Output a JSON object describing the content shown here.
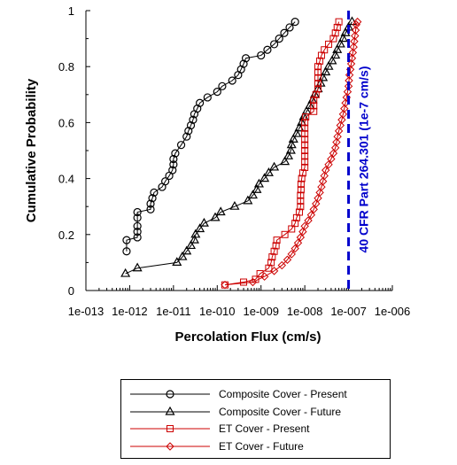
{
  "chart_data": {
    "type": "scatter",
    "xscale": "log",
    "xlim": [
      1e-13,
      1e-06
    ],
    "ylim": [
      0,
      1
    ],
    "xlabel": "Percolation Flux (cm/s)",
    "ylabel": "Cumulative Probability",
    "x_tick_labels": [
      "1e-013",
      "1e-012",
      "1e-011",
      "1e-010",
      "1e-009",
      "1e-008",
      "1e-007",
      "1e-006"
    ],
    "y_tick_labels": [
      "0",
      "0.2",
      "0.4",
      "0.6",
      "0.8",
      "1"
    ],
    "y_ticks": [
      0,
      0.2,
      0.4,
      0.6,
      0.8,
      1
    ],
    "grid": false,
    "legend_position": "below",
    "reference_line": {
      "x": 1e-07,
      "label": "40 CFR Part 264.301 (1e-7 cm/s)",
      "color": "#0000cc"
    },
    "series": [
      {
        "name": "Composite Cover - Present",
        "color": "#000000",
        "marker": "circle",
        "points": [
          [
            8.5e-13,
            0.14
          ],
          [
            8.5e-13,
            0.18
          ],
          [
            1.5e-12,
            0.19
          ],
          [
            1.5e-12,
            0.21
          ],
          [
            1.5e-12,
            0.23
          ],
          [
            1.5e-12,
            0.26
          ],
          [
            1.5e-12,
            0.28
          ],
          [
            3e-12,
            0.29
          ],
          [
            3e-12,
            0.31
          ],
          [
            3.3e-12,
            0.33
          ],
          [
            3.6e-12,
            0.35
          ],
          [
            5.5e-12,
            0.37
          ],
          [
            6.5e-12,
            0.39
          ],
          [
            8e-12,
            0.41
          ],
          [
            9.5e-12,
            0.43
          ],
          [
            1e-11,
            0.45
          ],
          [
            1e-11,
            0.47
          ],
          [
            1.1e-11,
            0.49
          ],
          [
            1.5e-11,
            0.52
          ],
          [
            2e-11,
            0.55
          ],
          [
            2.2e-11,
            0.57
          ],
          [
            2.5e-11,
            0.59
          ],
          [
            2.8e-11,
            0.61
          ],
          [
            3e-11,
            0.63
          ],
          [
            3.5e-11,
            0.65
          ],
          [
            4e-11,
            0.67
          ],
          [
            6e-11,
            0.69
          ],
          [
            1e-10,
            0.71
          ],
          [
            1.3e-10,
            0.73
          ],
          [
            2.2e-10,
            0.75
          ],
          [
            3e-10,
            0.77
          ],
          [
            3.5e-10,
            0.79
          ],
          [
            4e-10,
            0.81
          ],
          [
            4.5e-10,
            0.83
          ],
          [
            1e-09,
            0.84
          ],
          [
            1.4e-09,
            0.86
          ],
          [
            2e-09,
            0.88
          ],
          [
            2.6e-09,
            0.9
          ],
          [
            3.4e-09,
            0.92
          ],
          [
            4.5e-09,
            0.94
          ],
          [
            6e-09,
            0.96
          ]
        ]
      },
      {
        "name": "Composite Cover - Future",
        "color": "#000000",
        "marker": "triangle",
        "points": [
          [
            8e-13,
            0.06
          ],
          [
            1.5e-12,
            0.08
          ],
          [
            1.2e-11,
            0.1
          ],
          [
            1.6e-11,
            0.12
          ],
          [
            2e-11,
            0.14
          ],
          [
            2.5e-11,
            0.16
          ],
          [
            3e-11,
            0.18
          ],
          [
            3.2e-11,
            0.2
          ],
          [
            4e-11,
            0.22
          ],
          [
            5e-11,
            0.24
          ],
          [
            9e-11,
            0.26
          ],
          [
            1.2e-10,
            0.28
          ],
          [
            2.5e-10,
            0.3
          ],
          [
            5e-10,
            0.32
          ],
          [
            6.5e-10,
            0.34
          ],
          [
            8e-10,
            0.36
          ],
          [
            9e-10,
            0.38
          ],
          [
            1.2e-09,
            0.4
          ],
          [
            1.5e-09,
            0.42
          ],
          [
            2e-09,
            0.44
          ],
          [
            3.5e-09,
            0.46
          ],
          [
            4.2e-09,
            0.48
          ],
          [
            4.8e-09,
            0.5
          ],
          [
            5e-09,
            0.52
          ],
          [
            5.5e-09,
            0.54
          ],
          [
            6.5e-09,
            0.56
          ],
          [
            7.5e-09,
            0.58
          ],
          [
            8.5e-09,
            0.6
          ],
          [
            9.5e-09,
            0.62
          ],
          [
            1.1e-08,
            0.64
          ],
          [
            1.3e-08,
            0.66
          ],
          [
            1.5e-08,
            0.68
          ],
          [
            1.7e-08,
            0.7
          ],
          [
            2e-08,
            0.72
          ],
          [
            2.3e-08,
            0.74
          ],
          [
            2.6e-08,
            0.76
          ],
          [
            3e-08,
            0.78
          ],
          [
            3.5e-08,
            0.8
          ],
          [
            4.2e-08,
            0.82
          ],
          [
            5e-08,
            0.84
          ],
          [
            5.5e-08,
            0.86
          ],
          [
            6.5e-08,
            0.88
          ],
          [
            7.5e-08,
            0.9
          ],
          [
            8.5e-08,
            0.92
          ],
          [
            1e-07,
            0.94
          ],
          [
            1.2e-07,
            0.96
          ]
        ]
      },
      {
        "name": "ET Cover - Present",
        "color": "#cc0000",
        "marker": "square",
        "points": [
          [
            1.5e-10,
            0.02
          ],
          [
            4e-10,
            0.03
          ],
          [
            7.5e-10,
            0.04
          ],
          [
            9.5e-10,
            0.06
          ],
          [
            1.5e-09,
            0.08
          ],
          [
            1.7e-09,
            0.1
          ],
          [
            1.8e-09,
            0.12
          ],
          [
            2e-09,
            0.14
          ],
          [
            2.2e-09,
            0.16
          ],
          [
            2.3e-09,
            0.18
          ],
          [
            3.5e-09,
            0.2
          ],
          [
            5e-09,
            0.22
          ],
          [
            6e-09,
            0.24
          ],
          [
            6.5e-09,
            0.26
          ],
          [
            7.5e-09,
            0.28
          ],
          [
            8e-09,
            0.3
          ],
          [
            8e-09,
            0.32
          ],
          [
            8e-09,
            0.34
          ],
          [
            8.2e-09,
            0.36
          ],
          [
            8.2e-09,
            0.38
          ],
          [
            8.5e-09,
            0.4
          ],
          [
            9e-09,
            0.42
          ],
          [
            1e-08,
            0.44
          ],
          [
            1e-08,
            0.46
          ],
          [
            1e-08,
            0.48
          ],
          [
            1e-08,
            0.5
          ],
          [
            1e-08,
            0.52
          ],
          [
            1e-08,
            0.54
          ],
          [
            1e-08,
            0.56
          ],
          [
            1e-08,
            0.58
          ],
          [
            1e-08,
            0.6
          ],
          [
            1.05e-08,
            0.62
          ],
          [
            1.6e-08,
            0.64
          ],
          [
            1.6e-08,
            0.66
          ],
          [
            1.6e-08,
            0.68
          ],
          [
            1.8e-08,
            0.7
          ],
          [
            2e-08,
            0.72
          ],
          [
            2e-08,
            0.74
          ],
          [
            2e-08,
            0.76
          ],
          [
            2e-08,
            0.78
          ],
          [
            2e-08,
            0.8
          ],
          [
            2.2e-08,
            0.82
          ],
          [
            2.4e-08,
            0.84
          ],
          [
            2.8e-08,
            0.86
          ],
          [
            3.5e-08,
            0.88
          ],
          [
            4.5e-08,
            0.9
          ],
          [
            5e-08,
            0.92
          ],
          [
            5.5e-08,
            0.94
          ],
          [
            6e-08,
            0.96
          ]
        ]
      },
      {
        "name": "ET Cover - Future",
        "color": "#cc0000",
        "marker": "diamond",
        "points": [
          [
            1.5e-10,
            0.02
          ],
          [
            6.5e-10,
            0.03
          ],
          [
            1.2e-09,
            0.05
          ],
          [
            2e-09,
            0.07
          ],
          [
            3e-09,
            0.09
          ],
          [
            4e-09,
            0.11
          ],
          [
            5e-09,
            0.13
          ],
          [
            6e-09,
            0.15
          ],
          [
            7e-09,
            0.17
          ],
          [
            8e-09,
            0.19
          ],
          [
            9e-09,
            0.21
          ],
          [
            1e-08,
            0.23
          ],
          [
            1.2e-08,
            0.25
          ],
          [
            1.4e-08,
            0.27
          ],
          [
            1.6e-08,
            0.29
          ],
          [
            1.8e-08,
            0.31
          ],
          [
            2e-08,
            0.33
          ],
          [
            2.2e-08,
            0.35
          ],
          [
            2.4e-08,
            0.37
          ],
          [
            2.6e-08,
            0.39
          ],
          [
            2.8e-08,
            0.41
          ],
          [
            3e-08,
            0.43
          ],
          [
            3.5e-08,
            0.45
          ],
          [
            4e-08,
            0.47
          ],
          [
            4.5e-08,
            0.49
          ],
          [
            5e-08,
            0.51
          ],
          [
            5.3e-08,
            0.53
          ],
          [
            5.6e-08,
            0.55
          ],
          [
            6e-08,
            0.57
          ],
          [
            6.5e-08,
            0.59
          ],
          [
            7e-08,
            0.61
          ],
          [
            7.5e-08,
            0.63
          ],
          [
            8e-08,
            0.65
          ],
          [
            8.5e-08,
            0.67
          ],
          [
            9e-08,
            0.69
          ],
          [
            9.5e-08,
            0.71
          ],
          [
            1e-07,
            0.73
          ],
          [
            1.02e-07,
            0.75
          ],
          [
            1.05e-07,
            0.77
          ],
          [
            1.1e-07,
            0.79
          ],
          [
            1.15e-07,
            0.81
          ],
          [
            1.2e-07,
            0.83
          ],
          [
            1.25e-07,
            0.85
          ],
          [
            1.3e-07,
            0.87
          ],
          [
            1.35e-07,
            0.89
          ],
          [
            1.4e-07,
            0.91
          ],
          [
            1.45e-07,
            0.93
          ],
          [
            1.5e-07,
            0.95
          ],
          [
            1.6e-07,
            0.96
          ]
        ]
      }
    ]
  }
}
